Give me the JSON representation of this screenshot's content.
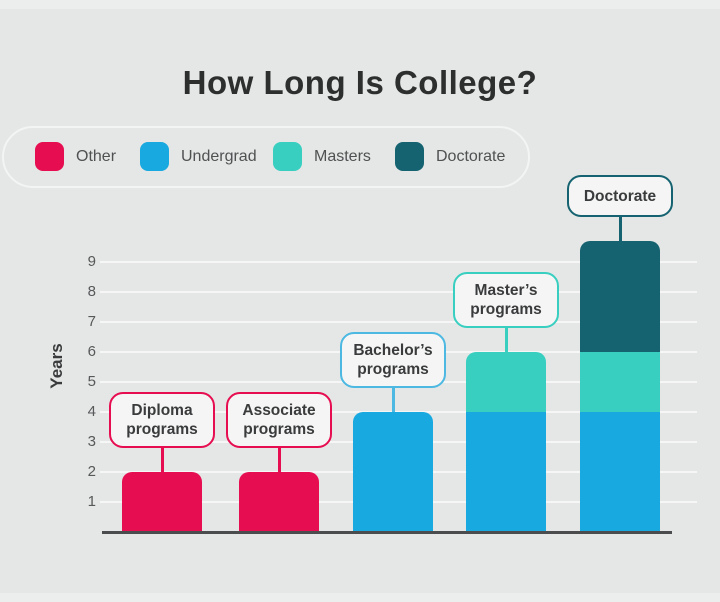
{
  "title": "How Long Is College?",
  "legend": {
    "items": [
      {
        "label": "Other",
        "color": "#e60e50"
      },
      {
        "label": "Undergrad",
        "color": "#17a9e0"
      },
      {
        "label": "Masters",
        "color": "#38cfc0"
      },
      {
        "label": "Doctorate",
        "color": "#156371"
      }
    ]
  },
  "chart_data": {
    "type": "bar",
    "stacked": true,
    "title": "How Long Is College?",
    "xlabel": "",
    "ylabel": "Years",
    "yticks": [
      1,
      2,
      3,
      4,
      5,
      6,
      7,
      8,
      9
    ],
    "ylim": [
      0,
      10
    ],
    "grid": true,
    "legend_position": "top-left",
    "categories": [
      "Diploma programs",
      "Associate programs",
      "Bachelor's programs",
      "Master's programs",
      "Doctorate"
    ],
    "series": [
      {
        "name": "Other",
        "color": "#e60e50",
        "values": [
          2,
          2,
          0,
          0,
          0
        ]
      },
      {
        "name": "Undergrad",
        "color": "#17a9e0",
        "values": [
          0,
          0,
          4,
          4,
          4
        ]
      },
      {
        "name": "Masters",
        "color": "#38cfc0",
        "values": [
          0,
          0,
          0,
          2,
          2
        ]
      },
      {
        "name": "Doctorate",
        "color": "#156371",
        "values": [
          0,
          0,
          0,
          0,
          3.7
        ]
      }
    ],
    "totals": [
      2,
      2,
      4,
      6,
      9.7
    ],
    "callouts": [
      {
        "lines": [
          "Diploma",
          "programs"
        ],
        "color": "#e60e50"
      },
      {
        "lines": [
          "Associate",
          "programs"
        ],
        "color": "#e60e50"
      },
      {
        "lines": [
          "Bachelor’s",
          "programs"
        ],
        "color": "#4db9e2"
      },
      {
        "lines": [
          "Master’s",
          "programs"
        ],
        "color": "#38cfc0"
      },
      {
        "lines": [
          "Doctorate"
        ],
        "color": "#156371"
      }
    ]
  }
}
